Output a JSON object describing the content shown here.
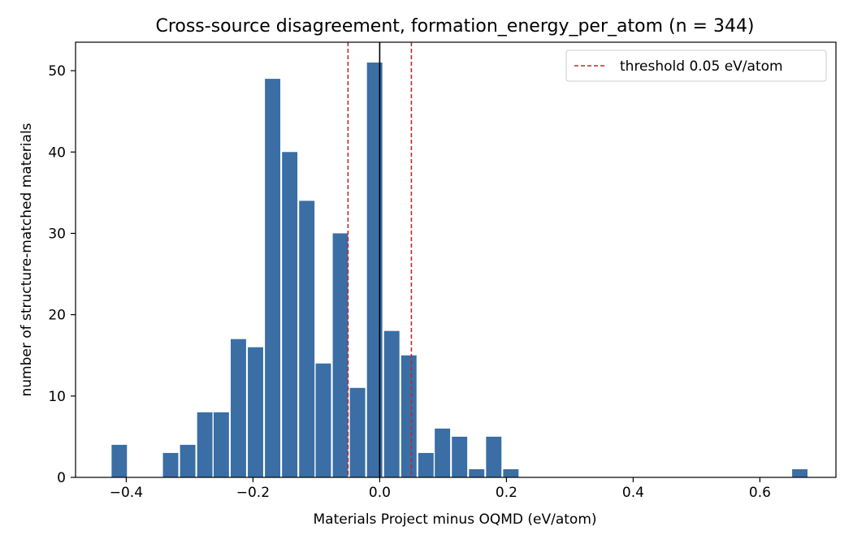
{
  "chart_data": {
    "type": "bar",
    "title": "Cross-source disagreement, formation_energy_per_atom (n = 344)",
    "xlabel": "Materials Project minus OQMD (eV/atom)",
    "ylabel": "number of structure-matched materials",
    "xlim": [
      -0.48,
      0.72
    ],
    "ylim": [
      0,
      53.5
    ],
    "xticks": [
      -0.4,
      -0.2,
      0.0,
      0.2,
      0.4,
      0.6
    ],
    "xtick_labels": [
      "−0.4",
      "−0.2",
      "0.0",
      "0.2",
      "0.4",
      "0.6"
    ],
    "yticks": [
      0,
      10,
      20,
      30,
      40,
      50
    ],
    "ytick_labels": [
      "0",
      "10",
      "20",
      "30",
      "40",
      "50"
    ],
    "bin_width": 0.0268,
    "bins": [
      {
        "x": -0.411,
        "count": 4
      },
      {
        "x": -0.33,
        "count": 3
      },
      {
        "x": -0.303,
        "count": 4
      },
      {
        "x": -0.276,
        "count": 8
      },
      {
        "x": -0.25,
        "count": 8
      },
      {
        "x": -0.223,
        "count": 17
      },
      {
        "x": -0.196,
        "count": 16
      },
      {
        "x": -0.169,
        "count": 49
      },
      {
        "x": -0.142,
        "count": 40
      },
      {
        "x": -0.115,
        "count": 34
      },
      {
        "x": -0.089,
        "count": 14
      },
      {
        "x": -0.062,
        "count": 30
      },
      {
        "x": -0.035,
        "count": 11
      },
      {
        "x": -0.008,
        "count": 51
      },
      {
        "x": 0.019,
        "count": 18
      },
      {
        "x": 0.046,
        "count": 15
      },
      {
        "x": 0.073,
        "count": 3
      },
      {
        "x": 0.099,
        "count": 6
      },
      {
        "x": 0.126,
        "count": 5
      },
      {
        "x": 0.153,
        "count": 1
      },
      {
        "x": 0.18,
        "count": 5
      },
      {
        "x": 0.207,
        "count": 1
      },
      {
        "x": 0.663,
        "count": 1
      }
    ],
    "threshold_lines": [
      -0.05,
      0.05
    ],
    "zero_line": 0.0,
    "legend": {
      "placement": "top-right",
      "label": "threshold 0.05 eV/atom"
    },
    "colors": {
      "bar": "#3a6ea5",
      "threshold": "#c0282d",
      "zero": "#000000"
    },
    "grid": false
  }
}
